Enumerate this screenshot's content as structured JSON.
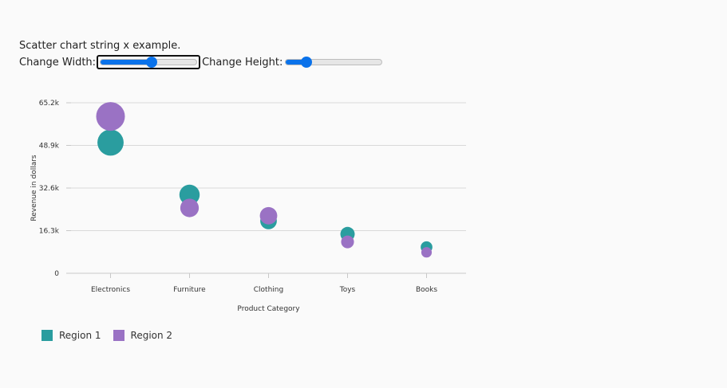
{
  "page": {
    "title": "Scatter chart string x example.",
    "width_label": "Change Width:",
    "height_label": "Change Height:",
    "width_slider_value": 0.53,
    "height_slider_value": 0.22
  },
  "chart_data": {
    "type": "scatter",
    "title": "",
    "xlabel": "Product Category",
    "ylabel": "Revenue in dollars",
    "categories": [
      "Electronics",
      "Furniture",
      "Clothing",
      "Toys",
      "Books"
    ],
    "y_ticks": [
      0,
      16300,
      32600,
      48900,
      65200
    ],
    "y_tick_labels": [
      "0",
      "16.3k",
      "32.6k",
      "48.9k",
      "65.2k"
    ],
    "ylim": [
      0,
      65200
    ],
    "grid": true,
    "legend_position": "bottom-left",
    "series": [
      {
        "name": "Region 1",
        "color": "#2a9d9f",
        "values": [
          50000,
          30000,
          20000,
          15000,
          10000
        ],
        "sizes": [
          50000,
          30000,
          20000,
          15000,
          10000
        ]
      },
      {
        "name": "Region 2",
        "color": "#9a72c4",
        "values": [
          60000,
          25000,
          22000,
          12000,
          8000
        ],
        "sizes": [
          60000,
          25000,
          22000,
          12000,
          8000
        ]
      }
    ]
  }
}
